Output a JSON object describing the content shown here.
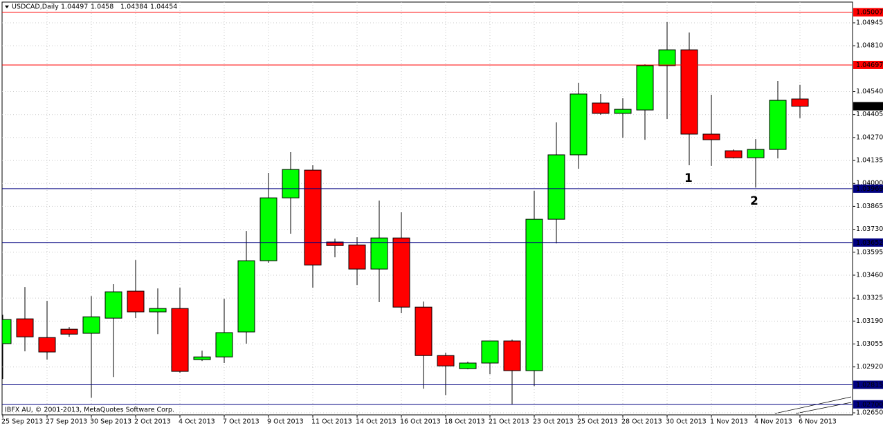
{
  "chart_data": {
    "type": "candlestick",
    "title": "USDCAD,Daily",
    "categories": [
      "25 Sep 2013",
      null,
      "27 Sep 2013",
      null,
      "30 Sep 2013",
      null,
      "2 Oct 2013",
      null,
      "4 Oct 2013",
      null,
      "7 Oct 2013",
      null,
      "9 Oct 2013",
      null,
      "11 Oct 2013",
      null,
      "14 Oct 2013",
      null,
      "16 Oct 2013",
      null,
      "18 Oct 2013",
      null,
      "21 Oct 2013",
      null,
      "23 Oct 2013",
      null,
      "25 Oct 2013",
      null,
      "28 Oct 2013",
      null,
      "30 Oct 2013",
      null,
      "1 Nov 2013",
      null,
      "4 Nov 2013",
      null,
      "6 Nov 2013"
    ],
    "open": [
      1.03057,
      1.03203,
      1.03093,
      1.03142,
      1.03118,
      1.03207,
      1.03366,
      1.03244,
      1.03264,
      1.02963,
      1.02979,
      1.03126,
      1.03545,
      1.03915,
      1.04078,
      1.03655,
      1.03638,
      1.03496,
      1.03679,
      1.03272,
      1.02987,
      1.0291,
      1.02943,
      1.03073,
      1.02898,
      1.03789,
      1.04168,
      1.04473,
      1.04412,
      1.04432,
      1.04693,
      1.04786,
      1.0429,
      1.04192,
      1.04151,
      1.042,
      1.04497
    ],
    "high": [
      1.03227,
      1.0339,
      1.03309,
      1.03154,
      1.03337,
      1.03407,
      1.03549,
      1.03382,
      1.03386,
      1.03016,
      1.03321,
      1.0372,
      1.04062,
      1.04184,
      1.04107,
      1.03675,
      1.03683,
      1.03899,
      1.0383,
      1.03305,
      1.03004,
      1.02951,
      1.03073,
      1.03081,
      1.03956,
      1.04359,
      1.04591,
      1.04526,
      1.04501,
      1.04701,
      1.04949,
      1.04888,
      1.04522,
      1.042,
      1.04261,
      1.04603,
      1.0458
    ],
    "low": [
      1.02849,
      1.03012,
      1.02963,
      1.03097,
      1.02739,
      1.02861,
      1.03207,
      1.03113,
      1.02886,
      1.02955,
      1.02943,
      1.03057,
      1.03533,
      1.03704,
      1.03386,
      1.03565,
      1.03402,
      1.03301,
      1.03236,
      1.02792,
      1.02755,
      1.02906,
      1.02877,
      1.02698,
      1.02808,
      1.03647,
      1.04086,
      1.04404,
      1.04269,
      1.04257,
      1.04379,
      1.04107,
      1.04103,
      1.04147,
      1.03976,
      1.04147,
      1.04384
    ],
    "close": [
      1.03199,
      1.03097,
      1.03008,
      1.03113,
      1.03215,
      1.03362,
      1.03244,
      1.03264,
      1.02894,
      1.02979,
      1.03122,
      1.03545,
      1.03915,
      1.04082,
      1.0352,
      1.03634,
      1.03496,
      1.03679,
      1.03272,
      1.02987,
      1.02926,
      1.02943,
      1.03073,
      1.02898,
      1.03789,
      1.04168,
      1.04526,
      1.04412,
      1.04436,
      1.04693,
      1.04786,
      1.0429,
      1.04257,
      1.04151,
      1.042,
      1.04489,
      1.04454
    ],
    "up_color": "#00ff00",
    "down_color": "#ff0000",
    "ylim": [
      1.02638,
      1.05067
    ],
    "yticks": [
      1.04945,
      {
        "value": 1.0481,
        "label": "1.04810"
      },
      {
        "value": 1.0454,
        "label": "1.04540"
      },
      1.04405,
      {
        "value": 1.0427,
        "label": "1.04270"
      },
      1.04135,
      {
        "value": 1.04,
        "label": "1.04000"
      },
      1.03865,
      {
        "value": 1.0373,
        "label": "1.03730"
      },
      1.03595,
      {
        "value": 1.0346,
        "label": "1.03460"
      },
      1.03325,
      {
        "value": 1.0319,
        "label": "1.03190"
      },
      1.03055,
      {
        "value": 1.0292,
        "label": "1.02920"
      },
      {
        "value": 1.0265,
        "label": "1.02650"
      }
    ],
    "grid": true,
    "levels": [
      {
        "value": 1.05007,
        "color": "#ff0000"
      },
      {
        "value": 1.04697,
        "color": "#ff0000"
      },
      {
        "value": 1.03969,
        "color": "#000080"
      },
      {
        "value": 1.03652,
        "color": "#000080"
      },
      {
        "value": 1.02815,
        "color": "#000080"
      },
      {
        "value": 1.027,
        "label": "1.02700",
        "color": "#000080"
      }
    ],
    "annotations": [
      "1",
      "2"
    ],
    "copyright": "IBFX AU, © 2001-2013, MetaQuotes Software Corp."
  }
}
